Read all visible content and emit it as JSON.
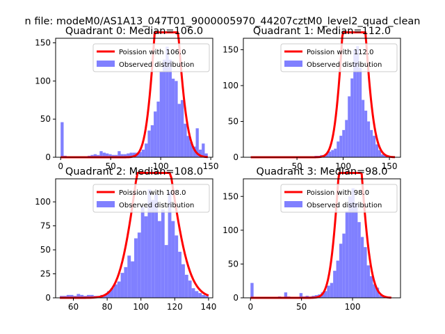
{
  "figure": {
    "suptitle": "n file: modeM0/AS1A13_047T01_9000005970_44207cztM0_level2_quad_clean"
  },
  "colors": {
    "hist": "#8080ff",
    "poisson": "#ff0000",
    "axis": "#000000"
  },
  "chart_data": [
    {
      "type": "bar",
      "title": "Quadrant 0: Median=106.0",
      "legend": [
        "Poission with 106.0",
        "Observed distribution"
      ],
      "legend_placement": "upper-right",
      "xlim": [
        -5,
        152
      ],
      "ylim": [
        0,
        156
      ],
      "xticks": [
        0,
        50,
        100,
        150
      ],
      "yticks": [
        0,
        50,
        100,
        150
      ],
      "median": 106.0,
      "counts_total": 2700,
      "bin_width": 3,
      "bins": [
        [
          0,
          46
        ],
        [
          3,
          2
        ],
        [
          6,
          1
        ],
        [
          9,
          1
        ],
        [
          12,
          1
        ],
        [
          15,
          1
        ],
        [
          18,
          1
        ],
        [
          21,
          1
        ],
        [
          24,
          1
        ],
        [
          27,
          2
        ],
        [
          30,
          3
        ],
        [
          33,
          4
        ],
        [
          36,
          3
        ],
        [
          39,
          8
        ],
        [
          42,
          6
        ],
        [
          45,
          5
        ],
        [
          48,
          4
        ],
        [
          51,
          3
        ],
        [
          54,
          3
        ],
        [
          57,
          8
        ],
        [
          60,
          4
        ],
        [
          63,
          4
        ],
        [
          66,
          5
        ],
        [
          69,
          6
        ],
        [
          72,
          6
        ],
        [
          75,
          6
        ],
        [
          78,
          7
        ],
        [
          81,
          10
        ],
        [
          84,
          18
        ],
        [
          87,
          35
        ],
        [
          90,
          42
        ],
        [
          93,
          60
        ],
        [
          96,
          73
        ],
        [
          99,
          112
        ],
        [
          102,
          128
        ],
        [
          105,
          145
        ],
        [
          108,
          128
        ],
        [
          111,
          103
        ],
        [
          114,
          100
        ],
        [
          117,
          70
        ],
        [
          120,
          75
        ],
        [
          123,
          44
        ],
        [
          126,
          28
        ],
        [
          129,
          20
        ],
        [
          132,
          14
        ],
        [
          135,
          38
        ],
        [
          138,
          10
        ],
        [
          141,
          18
        ],
        [
          144,
          5
        ]
      ]
    },
    {
      "type": "bar",
      "title": "Quadrant 1: Median=112.0",
      "legend": [
        "Poission with 112.0",
        "Observed distribution"
      ],
      "legend_placement": "upper-right",
      "xlim": [
        -8,
        162
      ],
      "ylim": [
        0,
        166
      ],
      "xticks": [
        50,
        100,
        150
      ],
      "yticks": [
        0,
        50,
        100,
        150
      ],
      "median": 112.0,
      "counts_total": 3070,
      "bin_width": 3,
      "bins": [
        [
          0,
          1
        ],
        [
          3,
          1
        ],
        [
          6,
          1
        ],
        [
          9,
          1
        ],
        [
          12,
          1
        ],
        [
          15,
          1
        ],
        [
          18,
          1
        ],
        [
          21,
          1
        ],
        [
          24,
          1
        ],
        [
          27,
          1
        ],
        [
          30,
          1
        ],
        [
          33,
          1
        ],
        [
          36,
          1
        ],
        [
          39,
          1
        ],
        [
          42,
          1
        ],
        [
          45,
          1
        ],
        [
          48,
          1
        ],
        [
          51,
          1
        ],
        [
          54,
          1
        ],
        [
          57,
          1
        ],
        [
          60,
          1
        ],
        [
          63,
          1
        ],
        [
          66,
          1
        ],
        [
          69,
          2
        ],
        [
          72,
          2
        ],
        [
          75,
          3
        ],
        [
          78,
          3
        ],
        [
          81,
          5
        ],
        [
          84,
          8
        ],
        [
          87,
          10
        ],
        [
          90,
          12
        ],
        [
          93,
          22
        ],
        [
          96,
          30
        ],
        [
          99,
          38
        ],
        [
          102,
          52
        ],
        [
          105,
          85
        ],
        [
          108,
          110
        ],
        [
          111,
          150
        ],
        [
          114,
          155
        ],
        [
          117,
          125
        ],
        [
          120,
          80
        ],
        [
          123,
          65
        ],
        [
          126,
          50
        ],
        [
          129,
          38
        ],
        [
          132,
          30
        ],
        [
          135,
          18
        ],
        [
          138,
          10
        ],
        [
          141,
          4
        ],
        [
          144,
          4
        ],
        [
          147,
          2
        ],
        [
          150,
          1
        ],
        [
          153,
          1
        ]
      ]
    },
    {
      "type": "bar",
      "title": "Quadrant 2: Median=108.0",
      "legend": [
        "Poission with 108.0",
        "Observed distribution"
      ],
      "legend_placement": "upper-right",
      "xlim": [
        49.5,
        142.5
      ],
      "ylim": [
        0,
        124
      ],
      "xticks": [
        60,
        80,
        100,
        120,
        140
      ],
      "yticks": [
        0,
        25,
        50,
        75,
        100
      ],
      "median": 108.0,
      "counts_total": 2670,
      "bin_width": 2,
      "bins": [
        [
          52,
          2
        ],
        [
          54,
          2
        ],
        [
          56,
          3
        ],
        [
          58,
          3
        ],
        [
          60,
          2
        ],
        [
          62,
          4
        ],
        [
          64,
          3
        ],
        [
          66,
          2
        ],
        [
          68,
          3
        ],
        [
          70,
          3
        ],
        [
          72,
          2
        ],
        [
          74,
          2
        ],
        [
          76,
          3
        ],
        [
          78,
          3
        ],
        [
          80,
          7
        ],
        [
          82,
          10
        ],
        [
          84,
          14
        ],
        [
          86,
          17
        ],
        [
          88,
          26
        ],
        [
          90,
          32
        ],
        [
          92,
          44
        ],
        [
          94,
          38
        ],
        [
          96,
          62
        ],
        [
          98,
          68
        ],
        [
          100,
          95
        ],
        [
          102,
          85
        ],
        [
          104,
          113
        ],
        [
          106,
          102
        ],
        [
          108,
          108
        ],
        [
          110,
          80
        ],
        [
          112,
          92
        ],
        [
          114,
          55
        ],
        [
          116,
          110
        ],
        [
          118,
          80
        ],
        [
          120,
          65
        ],
        [
          122,
          48
        ],
        [
          124,
          35
        ],
        [
          126,
          24
        ],
        [
          128,
          18
        ],
        [
          130,
          10
        ],
        [
          132,
          7
        ],
        [
          134,
          5
        ],
        [
          136,
          3
        ],
        [
          138,
          2
        ]
      ]
    },
    {
      "type": "bar",
      "title": "Quadrant 3: Median=98.0",
      "legend": [
        "Poission with 98.0",
        "Observed distribution"
      ],
      "legend_placement": "upper-right",
      "xlim": [
        -7,
        147
      ],
      "ylim": [
        0,
        176
      ],
      "xticks": [
        0,
        50,
        100
      ],
      "yticks": [
        0,
        50,
        100,
        150
      ],
      "median": 98.0,
      "counts_total": 2900,
      "bin_width": 3,
      "bins": [
        [
          0,
          22
        ],
        [
          3,
          1
        ],
        [
          6,
          1
        ],
        [
          9,
          1
        ],
        [
          12,
          1
        ],
        [
          15,
          1
        ],
        [
          18,
          1
        ],
        [
          21,
          1
        ],
        [
          24,
          1
        ],
        [
          27,
          2
        ],
        [
          30,
          1
        ],
        [
          33,
          8
        ],
        [
          36,
          2
        ],
        [
          39,
          1
        ],
        [
          42,
          1
        ],
        [
          45,
          1
        ],
        [
          48,
          7
        ],
        [
          51,
          2
        ],
        [
          54,
          3
        ],
        [
          57,
          2
        ],
        [
          60,
          3
        ],
        [
          63,
          4
        ],
        [
          66,
          5
        ],
        [
          69,
          8
        ],
        [
          72,
          10
        ],
        [
          75,
          18
        ],
        [
          78,
          22
        ],
        [
          81,
          40
        ],
        [
          84,
          55
        ],
        [
          87,
          80
        ],
        [
          90,
          95
        ],
        [
          93,
          128
        ],
        [
          96,
          150
        ],
        [
          99,
          162
        ],
        [
          102,
          140
        ],
        [
          105,
          112
        ],
        [
          108,
          90
        ],
        [
          111,
          75
        ],
        [
          114,
          48
        ],
        [
          117,
          32
        ],
        [
          120,
          20
        ],
        [
          123,
          15
        ],
        [
          126,
          4
        ],
        [
          129,
          3
        ],
        [
          132,
          1
        ],
        [
          135,
          1
        ]
      ]
    }
  ]
}
